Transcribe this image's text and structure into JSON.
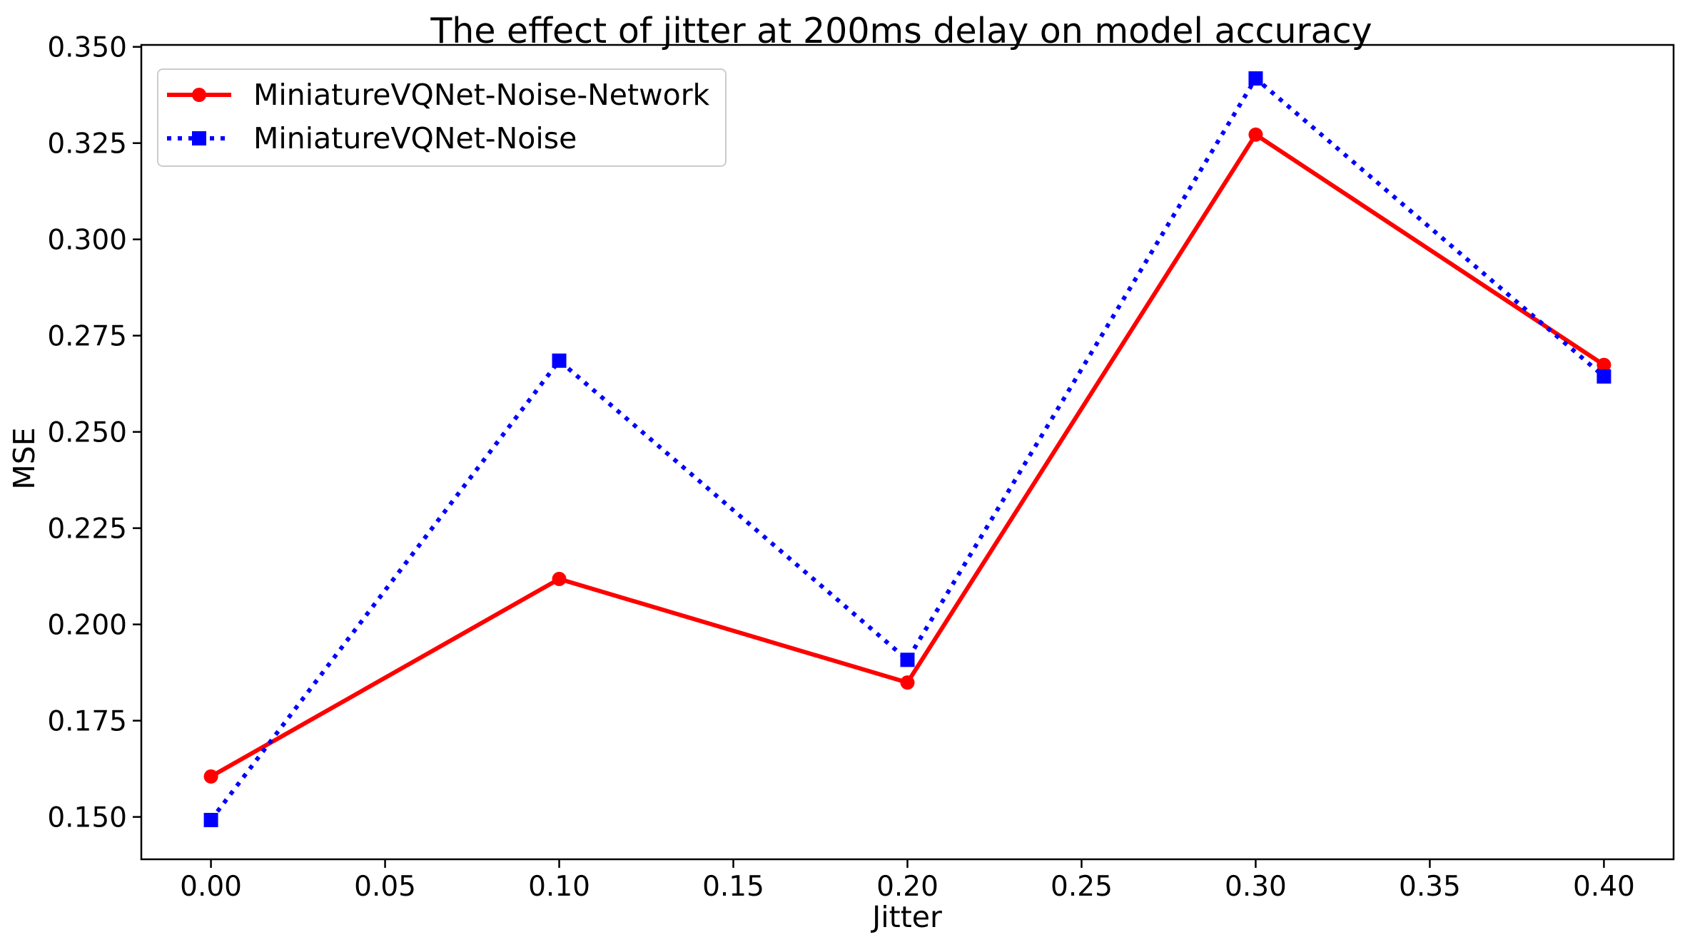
{
  "chart_data": {
    "type": "line",
    "title": "The effect of jitter at 200ms delay on model accuracy",
    "xlabel": "Jitter",
    "ylabel": "MSE",
    "x": [
      0.0,
      0.1,
      0.2,
      0.3,
      0.4
    ],
    "xlim": [
      -0.02,
      0.42
    ],
    "ylim": [
      0.139,
      0.3505
    ],
    "xticks": [
      0.0,
      0.05,
      0.1,
      0.15,
      0.2,
      0.25,
      0.3,
      0.35,
      0.4
    ],
    "xtick_labels": [
      "0.00",
      "0.05",
      "0.10",
      "0.15",
      "0.20",
      "0.25",
      "0.30",
      "0.35",
      "0.40"
    ],
    "yticks": [
      0.15,
      0.175,
      0.2,
      0.225,
      0.25,
      0.275,
      0.3,
      0.325,
      0.35
    ],
    "ytick_labels": [
      "0.150",
      "0.175",
      "0.200",
      "0.225",
      "0.250",
      "0.275",
      "0.300",
      "0.325",
      "0.350"
    ],
    "grid": false,
    "legend_position": "top-left",
    "series": [
      {
        "name": "MiniatureVQNet-Noise-Network",
        "values": [
          0.1605,
          0.2118,
          0.1849,
          0.3272,
          0.2674
        ],
        "color": "#ff0000",
        "line_style": "solid",
        "marker": "circle"
      },
      {
        "name": "MiniatureVQNet-Noise",
        "values": [
          0.1492,
          0.2685,
          0.1908,
          0.3418,
          0.2644
        ],
        "color": "#0000ff",
        "line_style": "dotted",
        "marker": "square"
      }
    ]
  }
}
